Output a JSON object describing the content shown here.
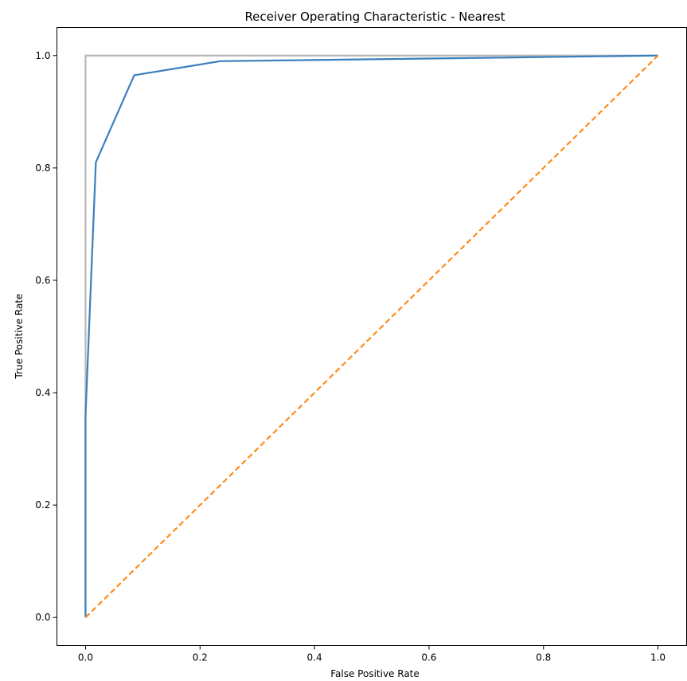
{
  "chart_data": {
    "type": "line",
    "title": "Receiver Operating Characteristic - Nearest",
    "xlabel": "False Positive Rate",
    "ylabel": "True Positive Rate",
    "xlim": [
      -0.05,
      1.05
    ],
    "ylim": [
      -0.05,
      1.05
    ],
    "xticks": [
      "0.0",
      "0.2",
      "0.4",
      "0.6",
      "0.8",
      "1.0"
    ],
    "yticks": [
      "0.0",
      "0.2",
      "0.4",
      "0.6",
      "0.8",
      "1.0"
    ],
    "grid": false,
    "legend": "none",
    "series": [
      {
        "color": "#3a7fbd",
        "style": "solid",
        "x": [
          0.0,
          0.0,
          0.018,
          0.085,
          0.235,
          1.0
        ],
        "y": [
          0.0,
          0.36,
          0.81,
          0.965,
          0.99,
          1.0
        ]
      },
      {
        "color": "#ff8c1a",
        "style": "dashed",
        "x": [
          0.0,
          1.0
        ],
        "y": [
          0.0,
          1.0
        ]
      },
      {
        "color": "#b8b8b8",
        "style": "solid",
        "x": [
          0.0,
          0.0,
          1.0
        ],
        "y": [
          0.0,
          1.0,
          1.0
        ]
      }
    ]
  }
}
